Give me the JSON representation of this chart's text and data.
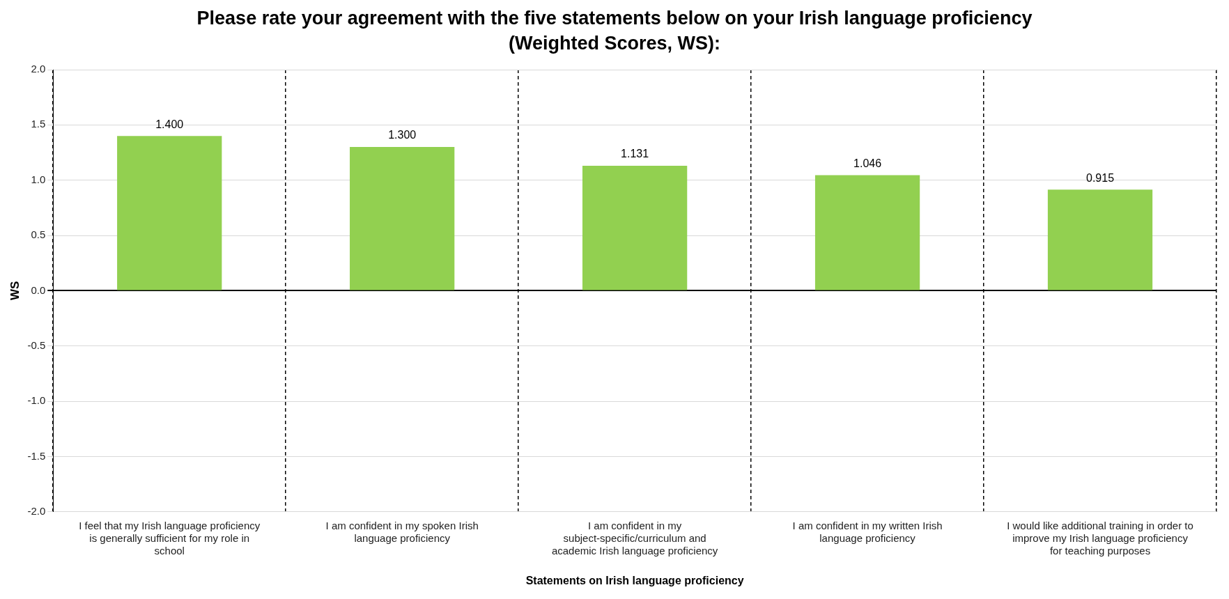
{
  "chart_data": {
    "type": "bar",
    "title": "Please rate your agreement with the five statements below on your Irish language proficiency (Weighted Scores, WS):",
    "xlabel": "Statements on Irish language proficiency",
    "ylabel": "WS",
    "categories": [
      "I feel that my Irish language proficiency is generally sufficient for my role in school",
      "I am confident in my spoken Irish language proficiency",
      "I am confident in my subject-specific/curriculum and academic Irish language proficiency",
      "I am confident in my written Irish language proficiency",
      "I would like additional training in order to improve my Irish language proficiency for teaching purposes"
    ],
    "values": [
      1.4,
      1.3,
      1.131,
      1.046,
      0.915
    ],
    "value_labels": [
      "1.400",
      "1.300",
      "1.131",
      "1.046",
      "0.915"
    ],
    "color": "#92d050",
    "ylim": [
      -2,
      2
    ],
    "yticks": [
      {
        "value": -2,
        "label": "-2.0"
      },
      {
        "value": -1.5,
        "label": "-1.5"
      },
      {
        "value": -1,
        "label": "-1.0"
      },
      {
        "value": -0.5,
        "label": "-0.5"
      },
      {
        "value": 0,
        "label": "0.0"
      },
      {
        "value": 0.5,
        "label": "0.5"
      },
      {
        "value": 1,
        "label": "1.0"
      },
      {
        "value": 1.5,
        "label": "1.5"
      },
      {
        "value": 2,
        "label": "2.0"
      }
    ],
    "grid": true,
    "legend": false
  }
}
